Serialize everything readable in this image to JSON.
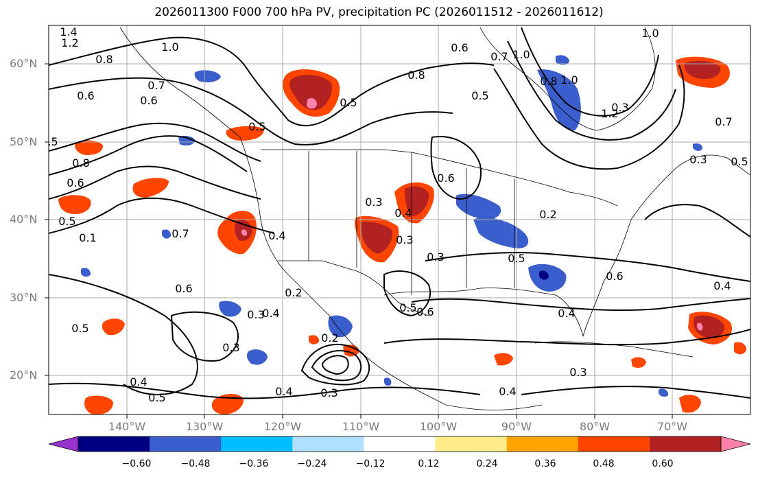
{
  "title": "2026011300 F000 700 hPa PV, precipitation PC (2026011512 - 2026011612)",
  "axes": {
    "latitude_labels": [
      "60°N",
      "50°N",
      "40°N",
      "30°N",
      "20°N"
    ],
    "longitude_labels": [
      "140°W",
      "130°W",
      "120°W",
      "110°W",
      "100°W",
      "90°W",
      "80°W",
      "70°W"
    ]
  },
  "colorbar": {
    "tick_labels": [
      "−0.60",
      "−0.48",
      "−0.36",
      "−0.24",
      "−0.12",
      "0.12",
      "0.24",
      "0.36",
      "0.48",
      "0.60"
    ],
    "colors": [
      "#9a32cd",
      "#000080",
      "#3a5fcd",
      "#00bfff",
      "#b0e2ff",
      "#ffffff",
      "#ffec8b",
      "#ffa500",
      "#ff4500",
      "#b22222",
      "#ff82ab"
    ]
  },
  "contour_labels": [
    "1.4",
    "1.2",
    "1.0",
    "0.8",
    "0.7",
    "0.6",
    "0.5",
    "0.4",
    "0.3",
    "0.2",
    "0.1"
  ],
  "contour_label_list": [
    "1.4",
    "1.2",
    "1.0",
    "0.8",
    "0.5",
    "0.6",
    "0.7",
    "0.5",
    "0.8",
    "0.6",
    "0.5",
    "0.1",
    "0.4",
    "0.7",
    "0.6",
    "0.5",
    "0.2",
    "0.3",
    "0.3",
    "0.4",
    "0.5",
    "0.4",
    "0.3",
    "0.2",
    "0.5",
    "0.6",
    "0.3",
    "0.4",
    "0.3",
    "0.4",
    "0.5",
    "0.6",
    "0.4",
    "0.2",
    "0.3",
    "0.3",
    "0.5",
    "0.8",
    "0.6",
    "1.0",
    "0.6",
    "0.4",
    "0.5",
    "0.6",
    "0.3",
    "0.3",
    "1.0",
    "0.8",
    "1.2",
    "1.0",
    "0.7",
    "0.5",
    "0.4",
    "0.7"
  ]
}
